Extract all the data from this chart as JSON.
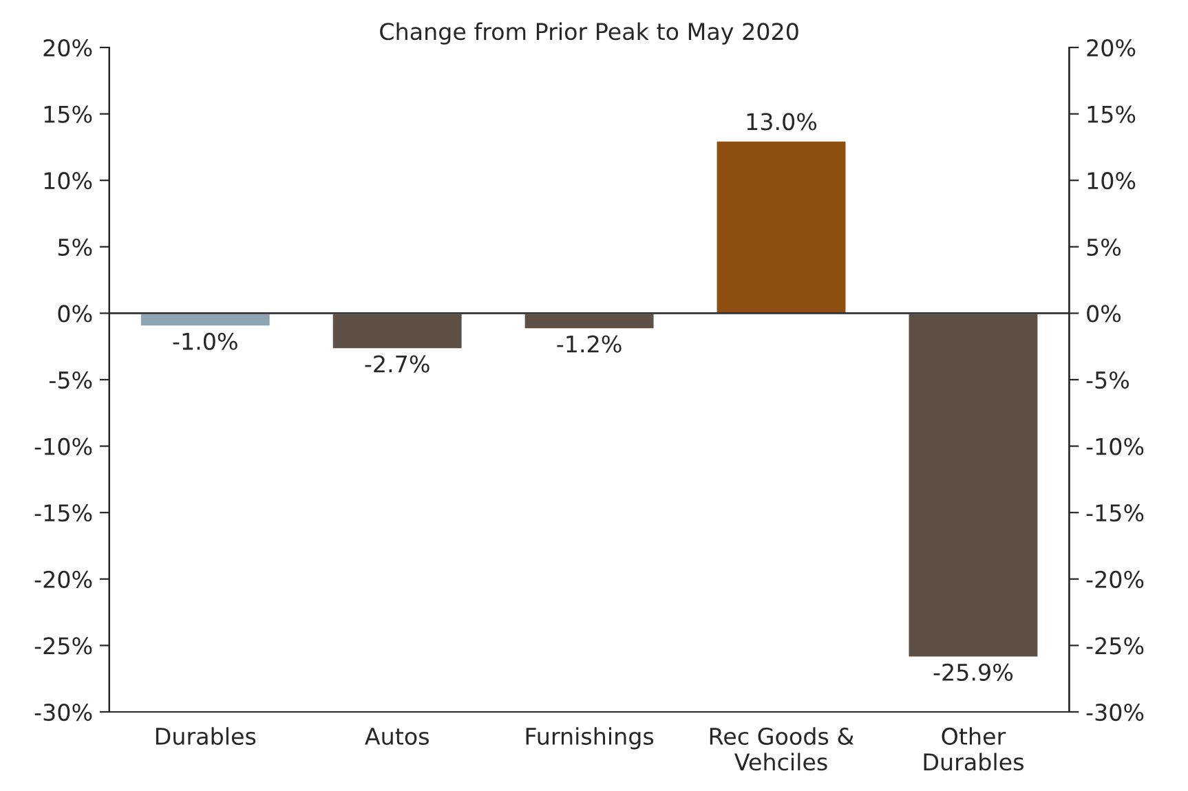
{
  "chart_data": {
    "type": "bar",
    "title": "Change from Prior Peak to May 2020",
    "categories": [
      "Durables",
      "Autos",
      "Furnishings",
      "Rec Goods &\nVehciles",
      "Other\nDurables"
    ],
    "values": [
      -1.0,
      -2.7,
      -1.2,
      13.0,
      -25.9
    ],
    "colors": [
      "#8ea4b2",
      "#5e5044",
      "#5e5044",
      "#8f4f10",
      "#5e5044"
    ],
    "value_labels": [
      "-1.0%",
      "-2.7%",
      "-1.2%",
      "13.0%",
      "-25.9%"
    ],
    "ref_lines": [
      {
        "axis": "y",
        "value": 0
      }
    ],
    "ylim": [
      -30,
      20
    ],
    "yticks": [
      {
        "value": -30,
        "label": "-30%"
      },
      {
        "value": -25,
        "label": "-25%"
      },
      {
        "value": -20,
        "label": "-20%"
      },
      {
        "value": -15,
        "label": "-15%"
      },
      {
        "value": -10,
        "label": "-10%"
      },
      {
        "value": -5,
        "label": "-5%"
      },
      {
        "value": 0,
        "label": "0%"
      },
      {
        "value": 5,
        "label": "5%"
      },
      {
        "value": 10,
        "label": "10%"
      },
      {
        "value": 15,
        "label": "15%"
      },
      {
        "value": 20,
        "label": "20%"
      }
    ],
    "y2lim": [
      -30,
      20
    ],
    "y2ticks": [
      {
        "value": -30,
        "label": "-30%"
      },
      {
        "value": -25,
        "label": "-25%"
      },
      {
        "value": -20,
        "label": "-20%"
      },
      {
        "value": -15,
        "label": "-15%"
      },
      {
        "value": -10,
        "label": "-10%"
      },
      {
        "value": -5,
        "label": "-5%"
      },
      {
        "value": 0,
        "label": "0%"
      },
      {
        "value": 5,
        "label": "5%"
      },
      {
        "value": 10,
        "label": "10%"
      },
      {
        "value": 15,
        "label": "15%"
      },
      {
        "value": 20,
        "label": "20%"
      }
    ],
    "grid": false,
    "legend": false
  }
}
